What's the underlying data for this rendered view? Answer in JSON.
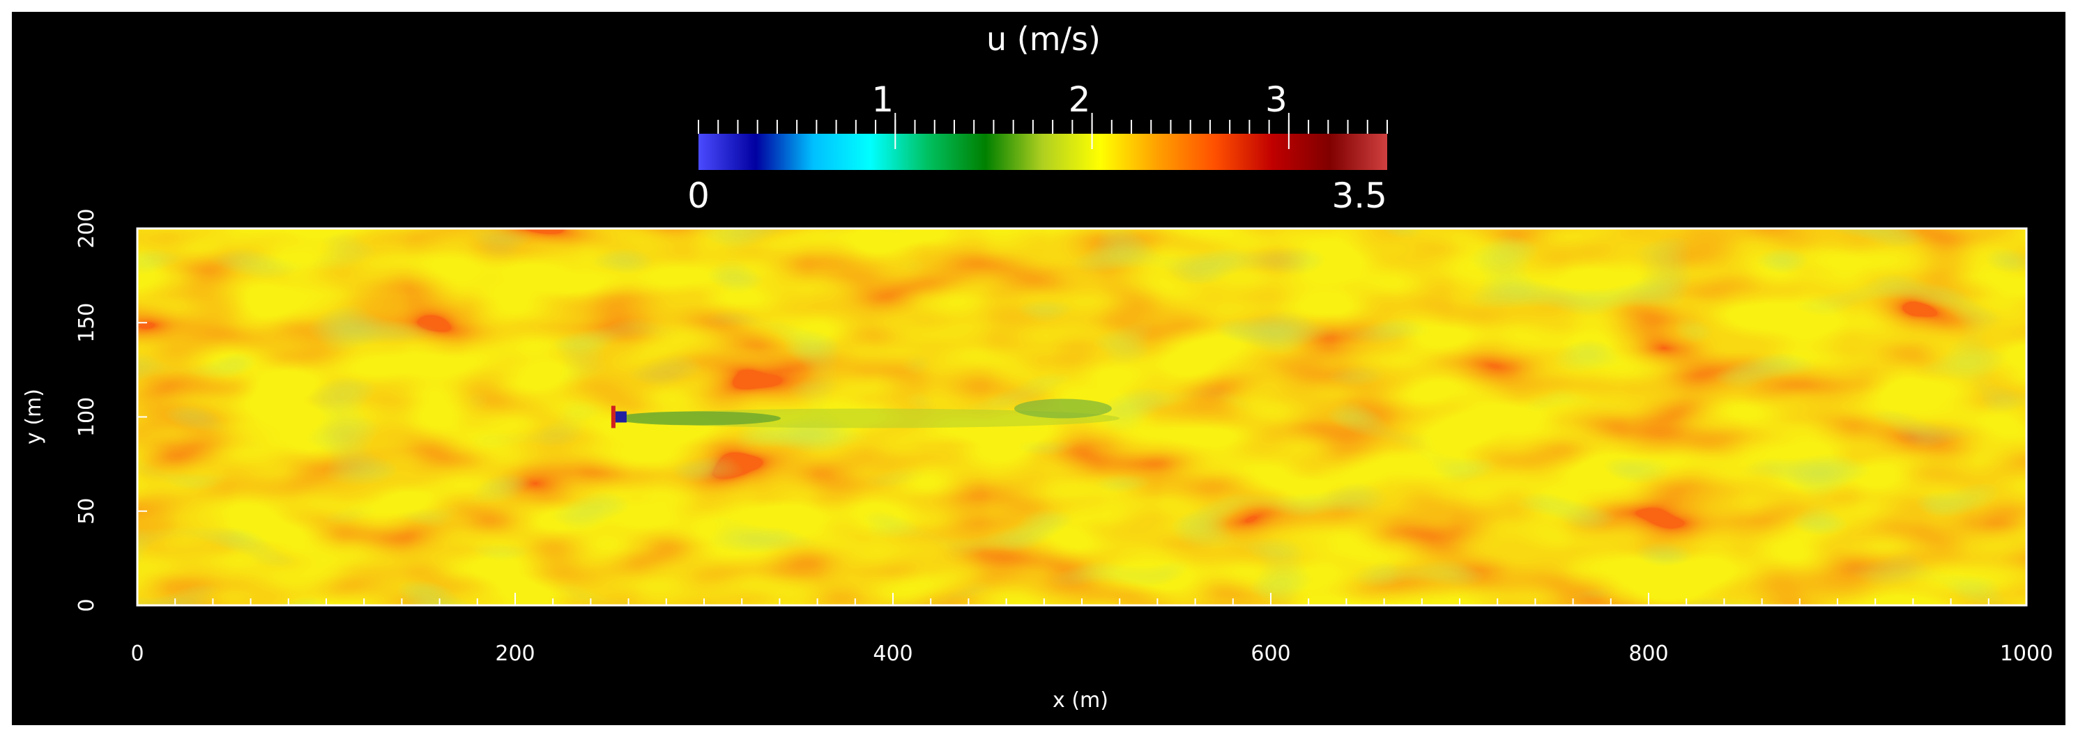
{
  "chart_data": {
    "type": "heatmap",
    "title": "",
    "xlabel": "x (m)",
    "ylabel": "y (m)",
    "xlim": [
      0,
      1000
    ],
    "ylim": [
      0,
      200
    ],
    "x_ticks": [
      "0",
      "200",
      "400",
      "600",
      "800",
      "1000"
    ],
    "y_ticks": [
      "0",
      "50",
      "100",
      "150",
      "200"
    ],
    "field": {
      "background_value": 2.3,
      "wake_origin": [
        252,
        100
      ],
      "wake_end": [
        520,
        100
      ]
    },
    "colorbar": {
      "title": "u (m/s)",
      "range": [
        0,
        3.5
      ],
      "min_label": "0",
      "max_label": "3.5",
      "ticks": [
        "1",
        "2",
        "3"
      ],
      "colors": [
        "#4b4bff",
        "#0000a0",
        "#00c0ff",
        "#00ffff",
        "#00c060",
        "#008000",
        "#b0d020",
        "#ffff00",
        "#ffa000",
        "#ff5000",
        "#c00000",
        "#800000",
        "#d04040"
      ]
    }
  }
}
